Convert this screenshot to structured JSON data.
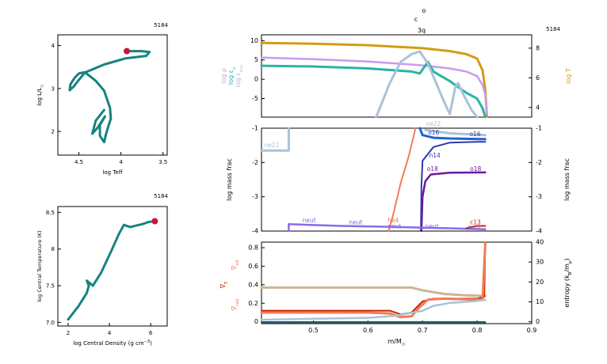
{
  "header": {
    "top_glyph": "o",
    "sub_glyph": "c",
    "sub_label": "3q",
    "model_number": "5184"
  },
  "colors": {
    "teal": "#16837F",
    "marker": "#C8143C",
    "lavender": "#C89BF0",
    "gold": "#D49C14",
    "aqua": "#2AB3A5",
    "steel": "#A9C2DA",
    "orange": "#F07D55",
    "navy": "#2E3BA8",
    "blue": "#1E64D8",
    "purple": "#6A1A9E",
    "violet": "#8B6BE8",
    "tan": "#CCB596",
    "red": "#CC2200",
    "green": "#1E7A3A"
  },
  "chart_data": [
    {
      "id": "hr",
      "type": "line",
      "model_label": "5184",
      "xlabel": "log Teff",
      "ylabel_base": "log L/L",
      "ylabel_sub": "☉",
      "x_reversed": true,
      "xlim": [
        4.75,
        3.45
      ],
      "ylim": [
        1.45,
        4.25
      ],
      "xticks": [
        4.5,
        4.0,
        3.5
      ],
      "xtick_labels": [
        "4.5",
        "4",
        "3.5"
      ],
      "yticks": [
        2,
        3,
        4
      ],
      "ytick_labels": [
        "2",
        "3",
        "4"
      ],
      "track": [
        [
          3.93,
          3.87
        ],
        [
          3.75,
          3.87
        ],
        [
          3.66,
          3.85
        ],
        [
          3.7,
          3.76
        ],
        [
          3.95,
          3.7
        ],
        [
          4.2,
          3.56
        ],
        [
          4.43,
          3.37
        ],
        [
          4.5,
          3.2
        ],
        [
          4.56,
          3.05
        ],
        [
          4.61,
          2.96
        ],
        [
          4.6,
          3.1
        ],
        [
          4.55,
          3.25
        ],
        [
          4.5,
          3.35
        ],
        [
          4.43,
          3.38
        ],
        [
          4.3,
          3.18
        ],
        [
          4.2,
          2.95
        ],
        [
          4.13,
          2.55
        ],
        [
          4.12,
          2.3
        ],
        [
          4.15,
          2.12
        ],
        [
          4.18,
          1.92
        ],
        [
          4.2,
          1.75
        ],
        [
          4.25,
          1.9
        ],
        [
          4.25,
          2.15
        ],
        [
          4.19,
          2.35
        ],
        [
          4.28,
          2.08
        ],
        [
          4.34,
          1.95
        ],
        [
          4.3,
          2.25
        ],
        [
          4.2,
          2.5
        ]
      ],
      "current_point": [
        3.93,
        3.87
      ]
    },
    {
      "id": "central",
      "type": "line",
      "model_label": "5184",
      "xlabel_base": "log Central Density (g cm",
      "xlabel_sup": "−3",
      "xlabel_close": ")",
      "ylabel": "log Central Temperature (K)",
      "xlim": [
        1.5,
        6.8
      ],
      "ylim": [
        6.95,
        8.58
      ],
      "xticks": [
        2,
        4,
        6
      ],
      "xtick_labels": [
        "2",
        "4",
        "6"
      ],
      "yticks": [
        7.0,
        7.5,
        8.0,
        8.5
      ],
      "ytick_labels": [
        "7.0",
        "7.5",
        "8",
        "8.5"
      ],
      "track": [
        [
          2.0,
          7.04
        ],
        [
          2.5,
          7.22
        ],
        [
          2.9,
          7.4
        ],
        [
          3.0,
          7.5
        ],
        [
          2.9,
          7.57
        ],
        [
          3.2,
          7.5
        ],
        [
          3.6,
          7.68
        ],
        [
          4.1,
          7.98
        ],
        [
          4.45,
          8.2
        ],
        [
          4.7,
          8.33
        ],
        [
          5.0,
          8.3
        ],
        [
          5.3,
          8.32
        ],
        [
          5.6,
          8.34
        ],
        [
          5.9,
          8.37
        ],
        [
          6.2,
          8.38
        ]
      ],
      "current_point": [
        6.2,
        8.38
      ]
    },
    {
      "id": "profile",
      "type": "line",
      "model_label": "5184",
      "left_labels": [
        {
          "text": "log ρ",
          "color": "lavender"
        },
        {
          "text": "log ε",
          "sub": "ν",
          "color": "aqua"
        },
        {
          "text": "log ε",
          "sub": "nuc",
          "color": "steel"
        }
      ],
      "right_label": "log T",
      "xlim": [
        0.405,
        0.9
      ],
      "ylim": [
        -9.8,
        11.5
      ],
      "yticks": [
        -5,
        0,
        5,
        10
      ],
      "ytick_labels": [
        "-5",
        "0",
        "5",
        "10"
      ],
      "y2lim": [
        3.35,
        8.9
      ],
      "y2ticks": [
        4,
        6,
        8
      ],
      "y2tick_labels": [
        "4",
        "6",
        "8"
      ],
      "series": [
        {
          "color": "gold",
          "axis": "right",
          "width": 3,
          "values": [
            [
              0.405,
              8.35
            ],
            [
              0.5,
              8.3
            ],
            [
              0.6,
              8.2
            ],
            [
              0.7,
              8.0
            ],
            [
              0.75,
              7.8
            ],
            [
              0.78,
              7.6
            ],
            [
              0.8,
              7.3
            ],
            [
              0.81,
              6.5
            ],
            [
              0.815,
              5.2
            ],
            [
              0.818,
              3.4
            ]
          ]
        },
        {
          "color": "lavender",
          "axis": "left",
          "width": 2.5,
          "values": [
            [
              0.405,
              5.6
            ],
            [
              0.5,
              5.2
            ],
            [
              0.6,
              4.6
            ],
            [
              0.7,
              3.6
            ],
            [
              0.75,
              2.8
            ],
            [
              0.78,
              2.0
            ],
            [
              0.8,
              0.8
            ],
            [
              0.81,
              -1.5
            ],
            [
              0.815,
              -4
            ],
            [
              0.818,
              -9
            ]
          ]
        },
        {
          "color": "aqua",
          "axis": "left",
          "width": 3,
          "values": [
            [
              0.405,
              3.5
            ],
            [
              0.5,
              3.3
            ],
            [
              0.6,
              2.8
            ],
            [
              0.68,
              2.0
            ],
            [
              0.695,
              1.5
            ],
            [
              0.71,
              4.5
            ],
            [
              0.72,
              2.0
            ],
            [
              0.75,
              -0.5
            ],
            [
              0.78,
              -3.5
            ],
            [
              0.8,
              -5
            ],
            [
              0.81,
              -7.5
            ],
            [
              0.815,
              -9.8
            ]
          ]
        },
        {
          "color": "steel",
          "axis": "left",
          "width": 3,
          "values": [
            [
              0.615,
              -9.8
            ],
            [
              0.64,
              -1
            ],
            [
              0.66,
              4.5
            ],
            [
              0.68,
              6.5
            ],
            [
              0.695,
              7.2
            ],
            [
              0.71,
              4.0
            ],
            [
              0.725,
              -1
            ],
            [
              0.74,
              -6
            ],
            [
              0.75,
              -9
            ],
            [
              0.76,
              -2
            ],
            [
              0.765,
              -1
            ],
            [
              0.775,
              -4
            ],
            [
              0.79,
              -8
            ],
            [
              0.8,
              -9.8
            ]
          ]
        }
      ]
    },
    {
      "id": "mass",
      "type": "line",
      "ylabel": "log mass frac",
      "right_label": "log mass frac",
      "xlim": [
        0.405,
        0.9
      ],
      "ylim": [
        -4.0,
        -1.0
      ],
      "yticks": [
        -4,
        -3,
        -2,
        -1
      ],
      "ytick_labels": [
        "-4",
        "-3",
        "-2",
        "-1"
      ],
      "series": [
        {
          "color": "steel",
          "width": 3,
          "values": [
            [
              0.405,
              -1.65
            ],
            [
              0.455,
              -1.65
            ],
            [
              0.455,
              -1.0
            ]
          ]
        },
        {
          "color": "orange",
          "width": 2,
          "values": [
            [
              0.638,
              -4.0
            ],
            [
              0.645,
              -3.6
            ],
            [
              0.66,
              -2.6
            ],
            [
              0.675,
              -1.8
            ],
            [
              0.687,
              -1.0
            ]
          ]
        },
        {
          "color": "navy",
          "width": 2,
          "values": [
            [
              0.697,
              -4.0
            ],
            [
              0.698,
              -2.7
            ],
            [
              0.7,
              -1.95
            ],
            [
              0.72,
              -1.55
            ],
            [
              0.75,
              -1.42
            ],
            [
              0.8,
              -1.4
            ],
            [
              0.815,
              -1.4
            ]
          ]
        },
        {
          "color": "purple",
          "width": 2.5,
          "values": [
            [
              0.698,
              -4.0
            ],
            [
              0.7,
              -3.0
            ],
            [
              0.705,
              -2.55
            ],
            [
              0.715,
              -2.35
            ],
            [
              0.75,
              -2.3
            ],
            [
              0.815,
              -2.29
            ]
          ]
        },
        {
          "color": "blue",
          "width": 3,
          "values": [
            [
              0.695,
              -1.0
            ],
            [
              0.7,
              -1.2
            ],
            [
              0.72,
              -1.28
            ],
            [
              0.75,
              -1.3
            ],
            [
              0.815,
              -1.32
            ]
          ]
        },
        {
          "color": "steel",
          "width": 3,
          "values": [
            [
              0.705,
              -1.05
            ],
            [
              0.75,
              -1.15
            ],
            [
              0.815,
              -1.2
            ]
          ]
        },
        {
          "color": "violet",
          "width": 2.5,
          "values": [
            [
              0.455,
              -4.0
            ],
            [
              0.455,
              -3.8
            ],
            [
              0.55,
              -3.85
            ],
            [
              0.65,
              -3.88
            ],
            [
              0.7,
              -3.9
            ],
            [
              0.75,
              -3.92
            ],
            [
              0.815,
              -3.95
            ]
          ]
        },
        {
          "color": "red",
          "width": 2,
          "values": [
            [
              0.78,
              -3.92
            ],
            [
              0.8,
              -3.85
            ],
            [
              0.815,
              -3.85
            ]
          ]
        }
      ],
      "labels": [
        {
          "text": "ne22",
          "x": 0.41,
          "y": -1.55,
          "color": "steel"
        },
        {
          "text": "ne22",
          "x": 0.706,
          "y": -0.93,
          "color": "steel"
        },
        {
          "text": "o16",
          "x": 0.71,
          "y": -1.18,
          "color": "navy"
        },
        {
          "text": "o16",
          "x": 0.786,
          "y": -1.23,
          "color": "navy"
        },
        {
          "text": "n14",
          "x": 0.712,
          "y": -1.85,
          "color": "navy"
        },
        {
          "text": "o18",
          "x": 0.708,
          "y": -2.25,
          "color": "purple"
        },
        {
          "text": "o18",
          "x": 0.787,
          "y": -2.25,
          "color": "purple"
        },
        {
          "text": "neut",
          "x": 0.48,
          "y": -3.75,
          "color": "violet"
        },
        {
          "text": "neut",
          "x": 0.565,
          "y": -3.8,
          "color": "violet"
        },
        {
          "text": "he4",
          "x": 0.636,
          "y": -3.75,
          "color": "orange"
        },
        {
          "text": "neut",
          "x": 0.636,
          "y": -3.92,
          "color": "violet"
        },
        {
          "text": "neut",
          "x": 0.705,
          "y": -3.92,
          "color": "violet"
        },
        {
          "text": "c13",
          "x": 0.787,
          "y": -3.8,
          "color": "red"
        },
        {
          "text": "neut",
          "x": 0.783,
          "y": -3.94,
          "color": "violet"
        }
      ]
    },
    {
      "id": "gradients",
      "type": "line",
      "xlabel_base": "m/M",
      "xlabel_sub": "☉",
      "left_labels": [
        {
          "text": "∇",
          "sub": "ad",
          "color": "orange"
        },
        {
          "text": "∇",
          "sub": "T",
          "color": "red"
        },
        {
          "text": "∇",
          "sub": "rad",
          "color": "orange"
        }
      ],
      "right_label_base": "entropy (k",
      "right_label_sub1": "B",
      "right_label_mid": "/m",
      "right_label_sub2": "p",
      "right_label_close": ")",
      "xlim": [
        0.405,
        0.9
      ],
      "xticks": [
        0.5,
        0.6,
        0.7,
        0.8,
        0.9
      ],
      "xtick_labels": [
        "0.5",
        "0.6",
        "0.7",
        "0.8",
        "0.9"
      ],
      "ylim": [
        -0.02,
        0.86
      ],
      "yticks": [
        0,
        0.2,
        0.4,
        0.6,
        0.8
      ],
      "ytick_labels": [
        "0",
        "0.2",
        "0.4",
        "0.6",
        "0.8"
      ],
      "y2lim": [
        -0.93,
        40
      ],
      "y2ticks": [
        0,
        10,
        20,
        30,
        40
      ],
      "y2tick_labels": [
        "0",
        "10",
        "20",
        "30",
        "40"
      ],
      "series": [
        {
          "color": "green",
          "width": 2,
          "values": [
            [
              0.405,
              -0.01
            ],
            [
              0.815,
              -0.01
            ]
          ]
        },
        {
          "color": "tan",
          "width": 3,
          "values": [
            [
              0.405,
              0.37
            ],
            [
              0.5,
              0.37
            ],
            [
              0.6,
              0.37
            ],
            [
              0.68,
              0.37
            ],
            [
              0.7,
              0.34
            ],
            [
              0.74,
              0.3
            ],
            [
              0.78,
              0.285
            ],
            [
              0.81,
              0.28
            ],
            [
              0.815,
              0.28
            ]
          ]
        },
        {
          "color": "red",
          "width": 2,
          "values": [
            [
              0.405,
              0.12
            ],
            [
              0.5,
              0.12
            ],
            [
              0.6,
              0.12
            ],
            [
              0.64,
              0.12
            ],
            [
              0.66,
              0.08
            ],
            [
              0.68,
              0.1
            ],
            [
              0.7,
              0.22
            ],
            [
              0.72,
              0.25
            ],
            [
              0.76,
              0.25
            ],
            [
              0.8,
              0.25
            ],
            [
              0.813,
              0.27
            ],
            [
              0.815,
              0.85
            ]
          ]
        },
        {
          "color": "orange",
          "width": 3,
          "values": [
            [
              0.405,
              0.1
            ],
            [
              0.5,
              0.1
            ],
            [
              0.6,
              0.1
            ],
            [
              0.64,
              0.09
            ],
            [
              0.66,
              0.05
            ],
            [
              0.68,
              0.06
            ],
            [
              0.695,
              0.16
            ],
            [
              0.71,
              0.24
            ],
            [
              0.74,
              0.25
            ],
            [
              0.79,
              0.24
            ],
            [
              0.81,
              0.24
            ],
            [
              0.815,
              0.85
            ]
          ]
        },
        {
          "color": "steel",
          "axis": "right",
          "width": 2.5,
          "values": [
            [
              0.405,
              1
            ],
            [
              0.5,
              1.5
            ],
            [
              0.6,
              2
            ],
            [
              0.65,
              3
            ],
            [
              0.7,
              5.5
            ],
            [
              0.72,
              8
            ],
            [
              0.75,
              9.5
            ],
            [
              0.78,
              10
            ],
            [
              0.8,
              10.5
            ],
            [
              0.815,
              11
            ]
          ]
        },
        {
          "color": "navy",
          "axis": "right",
          "width": 1.5,
          "values": [
            [
              0.405,
              0
            ],
            [
              0.815,
              0
            ]
          ]
        }
      ]
    }
  ]
}
